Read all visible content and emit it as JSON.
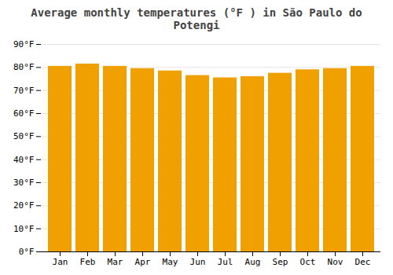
{
  "chart_data": {
    "type": "bar",
    "title": "Average monthly temperatures (°F ) in São Paulo do Potengi",
    "categories": [
      "Jan",
      "Feb",
      "Mar",
      "Apr",
      "May",
      "Jun",
      "Jul",
      "Aug",
      "Sep",
      "Oct",
      "Nov",
      "Dec"
    ],
    "values": [
      80.5,
      81.5,
      80.5,
      79.5,
      78.5,
      76.5,
      75.5,
      76.0,
      77.5,
      79.0,
      79.5,
      80.5
    ],
    "color": "#F0A000",
    "ylim": [
      0,
      90
    ],
    "yticks": [
      {
        "value": 0,
        "label": "0°F"
      },
      {
        "value": 10,
        "label": "10°F"
      },
      {
        "value": 20,
        "label": "20°F"
      },
      {
        "value": 30,
        "label": "30°F"
      },
      {
        "value": 40,
        "label": "40°F"
      },
      {
        "value": 50,
        "label": "50°F"
      },
      {
        "value": 60,
        "label": "60°F"
      },
      {
        "value": 70,
        "label": "70°F"
      },
      {
        "value": 80,
        "label": "80°F"
      },
      {
        "value": 90,
        "label": "90°F"
      }
    ],
    "grid": true
  }
}
